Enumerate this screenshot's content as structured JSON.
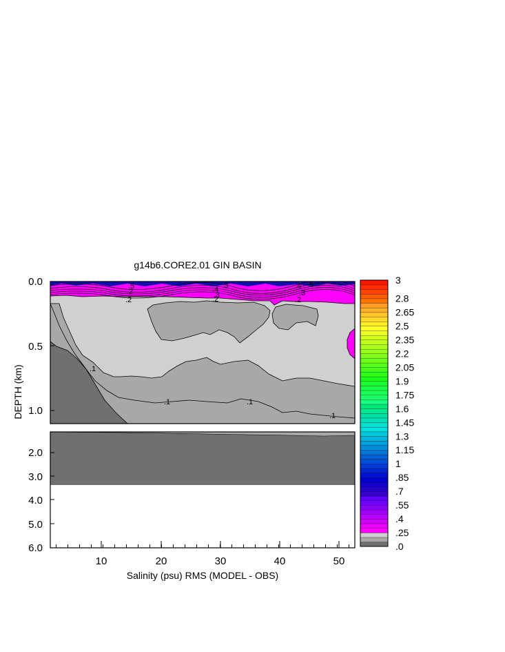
{
  "chart_data": {
    "type": "heatmap",
    "title": "g14b6.CORE2.01 GIN BASIN",
    "xlabel": "Salinity (psu) RMS (MODEL - OBS)",
    "ylabel": "DEPTH (km)",
    "xlim": [
      1,
      53
    ],
    "x_ticks": [
      "10",
      "20",
      "30",
      "40",
      "50"
    ],
    "upper_panel": {
      "ylim_km": [
        0.0,
        1.1
      ],
      "y_ticks": [
        "0.0",
        "0.5",
        "1.0"
      ]
    },
    "lower_panel": {
      "ylim_km": [
        1.1,
        6.0
      ],
      "y_ticks": [
        "2.0",
        "3.0",
        "4.0",
        "5.0",
        "6.0"
      ],
      "seafloor_depth_km": 3.35
    },
    "contour_levels": [
      0,
      0.1,
      0.2,
      0.25,
      0.3,
      0.35,
      0.4,
      0.45,
      0.5,
      0.55,
      0.6,
      0.65,
      0.7,
      0.75,
      0.8,
      0.85,
      0.9,
      0.95,
      1.0,
      1.05,
      1.1,
      1.15,
      1.2,
      1.25,
      1.3,
      1.35,
      1.4,
      1.45,
      1.5,
      1.55,
      1.6,
      1.65,
      1.7,
      1.75,
      1.8,
      1.85,
      1.9,
      1.95,
      2.0,
      2.05,
      2.1,
      2.15,
      2.2,
      2.25,
      2.3,
      2.35,
      2.4,
      2.45,
      2.5,
      2.55,
      2.6,
      2.65,
      2.7,
      2.75,
      2.8,
      2.85,
      2.9,
      2.95,
      3.0
    ],
    "colorbar_ticks": [
      ".0",
      ".25",
      ".4",
      ".55",
      ".7",
      ".85",
      "1",
      "1.15",
      "1.3",
      "1.45",
      "1.6",
      "1.75",
      "1.9",
      "2.05",
      "2.2",
      "2.35",
      "2.5",
      "2.65",
      "2.8",
      "3"
    ],
    "contour_labels": [
      ".5",
      ".2",
      ".4",
      ".3",
      ".3",
      ".2",
      ".2",
      ".4",
      ".3",
      ".2",
      ".5",
      ".1",
      ".1",
      ".1",
      ".1"
    ],
    "colors": {
      "shade_0": "#707070",
      "shade_1": "#a8a8a8",
      "shade_2": "#d0d0d0",
      "magenta": "#ff00ff",
      "deep_blue": "#1010b0",
      "frame": "#000000"
    }
  }
}
